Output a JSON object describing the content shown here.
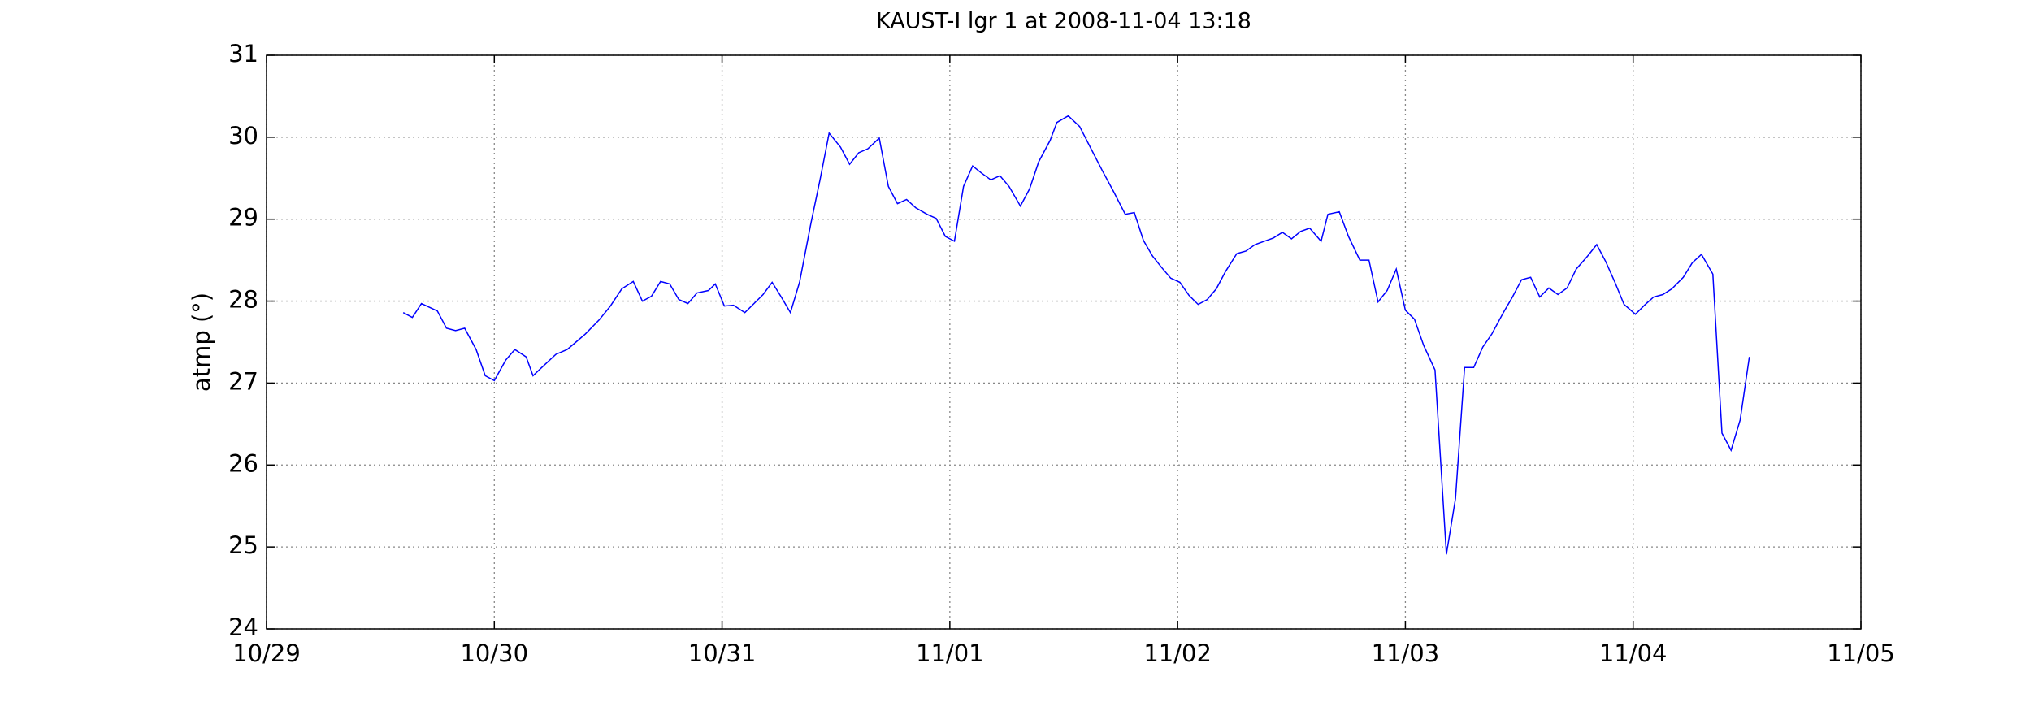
{
  "chart_data": {
    "type": "line",
    "title": "KAUST-I lgr 1 at 2008-11-04 13:18",
    "y_label": "atmp (°)",
    "color": "#0000ff",
    "grid": true,
    "x": [
      0.6,
      0.64,
      0.68,
      0.75,
      0.79,
      0.83,
      0.87,
      0.92,
      0.96,
      1.0,
      1.05,
      1.09,
      1.14,
      1.17,
      1.22,
      1.27,
      1.32,
      1.35,
      1.4,
      1.46,
      1.51,
      1.56,
      1.61,
      1.65,
      1.69,
      1.73,
      1.77,
      1.81,
      1.85,
      1.89,
      1.94,
      1.97,
      2.01,
      2.05,
      2.1,
      2.14,
      2.18,
      2.22,
      2.26,
      2.3,
      2.34,
      2.39,
      2.43,
      2.47,
      2.52,
      2.56,
      2.6,
      2.64,
      2.69,
      2.73,
      2.77,
      2.81,
      2.85,
      2.9,
      2.94,
      2.98,
      3.02,
      3.06,
      3.1,
      3.14,
      3.18,
      3.22,
      3.26,
      3.31,
      3.35,
      3.39,
      3.44,
      3.47,
      3.52,
      3.57,
      3.62,
      3.67,
      3.72,
      3.77,
      3.81,
      3.85,
      3.89,
      3.93,
      3.97,
      4.01,
      4.05,
      4.09,
      4.13,
      4.17,
      4.21,
      4.26,
      4.3,
      4.34,
      4.38,
      4.42,
      4.46,
      4.5,
      4.54,
      4.58,
      4.63,
      4.66,
      4.71,
      4.75,
      4.8,
      4.84,
      4.88,
      4.92,
      4.96,
      5.0,
      5.04,
      5.08,
      5.13,
      5.18,
      5.22,
      5.26,
      5.3,
      5.34,
      5.38,
      5.43,
      5.47,
      5.51,
      5.55,
      5.59,
      5.63,
      5.67,
      5.71,
      5.75,
      5.8,
      5.84,
      5.88,
      5.92,
      5.96,
      6.01,
      6.05,
      6.09,
      6.13,
      6.17,
      6.22,
      6.26,
      6.3,
      6.35,
      6.39,
      6.43,
      6.47,
      6.51
    ],
    "values": [
      27.86,
      27.8,
      27.97,
      27.88,
      27.67,
      27.64,
      27.67,
      27.41,
      27.09,
      27.03,
      27.28,
      27.41,
      27.32,
      27.09,
      27.22,
      27.35,
      27.41,
      27.48,
      27.6,
      27.77,
      27.94,
      28.15,
      28.24,
      28.0,
      28.06,
      28.24,
      28.21,
      28.02,
      27.97,
      28.1,
      28.13,
      28.21,
      27.94,
      27.95,
      27.86,
      27.97,
      28.08,
      28.23,
      28.05,
      27.86,
      28.23,
      28.95,
      29.48,
      30.05,
      29.88,
      29.67,
      29.81,
      29.86,
      29.99,
      29.4,
      29.19,
      29.24,
      29.14,
      29.06,
      29.01,
      28.79,
      28.73,
      29.4,
      29.65,
      29.56,
      29.48,
      29.53,
      29.4,
      29.16,
      29.37,
      29.7,
      29.96,
      30.18,
      30.26,
      30.13,
      29.86,
      29.59,
      29.33,
      29.06,
      29.08,
      28.74,
      28.55,
      28.41,
      28.28,
      28.23,
      28.07,
      27.96,
      28.02,
      28.15,
      28.36,
      28.58,
      28.61,
      28.69,
      28.73,
      28.77,
      28.84,
      28.76,
      28.85,
      28.89,
      28.73,
      29.06,
      29.09,
      28.79,
      28.5,
      28.5,
      27.99,
      28.13,
      28.39,
      27.89,
      27.78,
      27.46,
      27.16,
      24.91,
      25.59,
      27.19,
      27.19,
      27.44,
      27.6,
      27.86,
      28.05,
      28.26,
      28.29,
      28.05,
      28.16,
      28.08,
      28.16,
      28.39,
      28.55,
      28.69,
      28.48,
      28.23,
      27.96,
      27.84,
      27.95,
      28.05,
      28.08,
      28.15,
      28.29,
      28.47,
      28.57,
      28.33,
      26.39,
      26.18,
      26.55,
      27.32
    ],
    "xlim": [
      0,
      7
    ],
    "xticks": [
      {
        "value": 0,
        "label": "10/29"
      },
      {
        "value": 1,
        "label": "10/30"
      },
      {
        "value": 2,
        "label": "10/31"
      },
      {
        "value": 3,
        "label": "11/01"
      },
      {
        "value": 4,
        "label": "11/02"
      },
      {
        "value": 5,
        "label": "11/03"
      },
      {
        "value": 6,
        "label": "11/04"
      },
      {
        "value": 7,
        "label": "11/05"
      }
    ],
    "ylim": [
      24,
      31
    ],
    "yticks": [
      24,
      25,
      26,
      27,
      28,
      29,
      30,
      31
    ]
  }
}
